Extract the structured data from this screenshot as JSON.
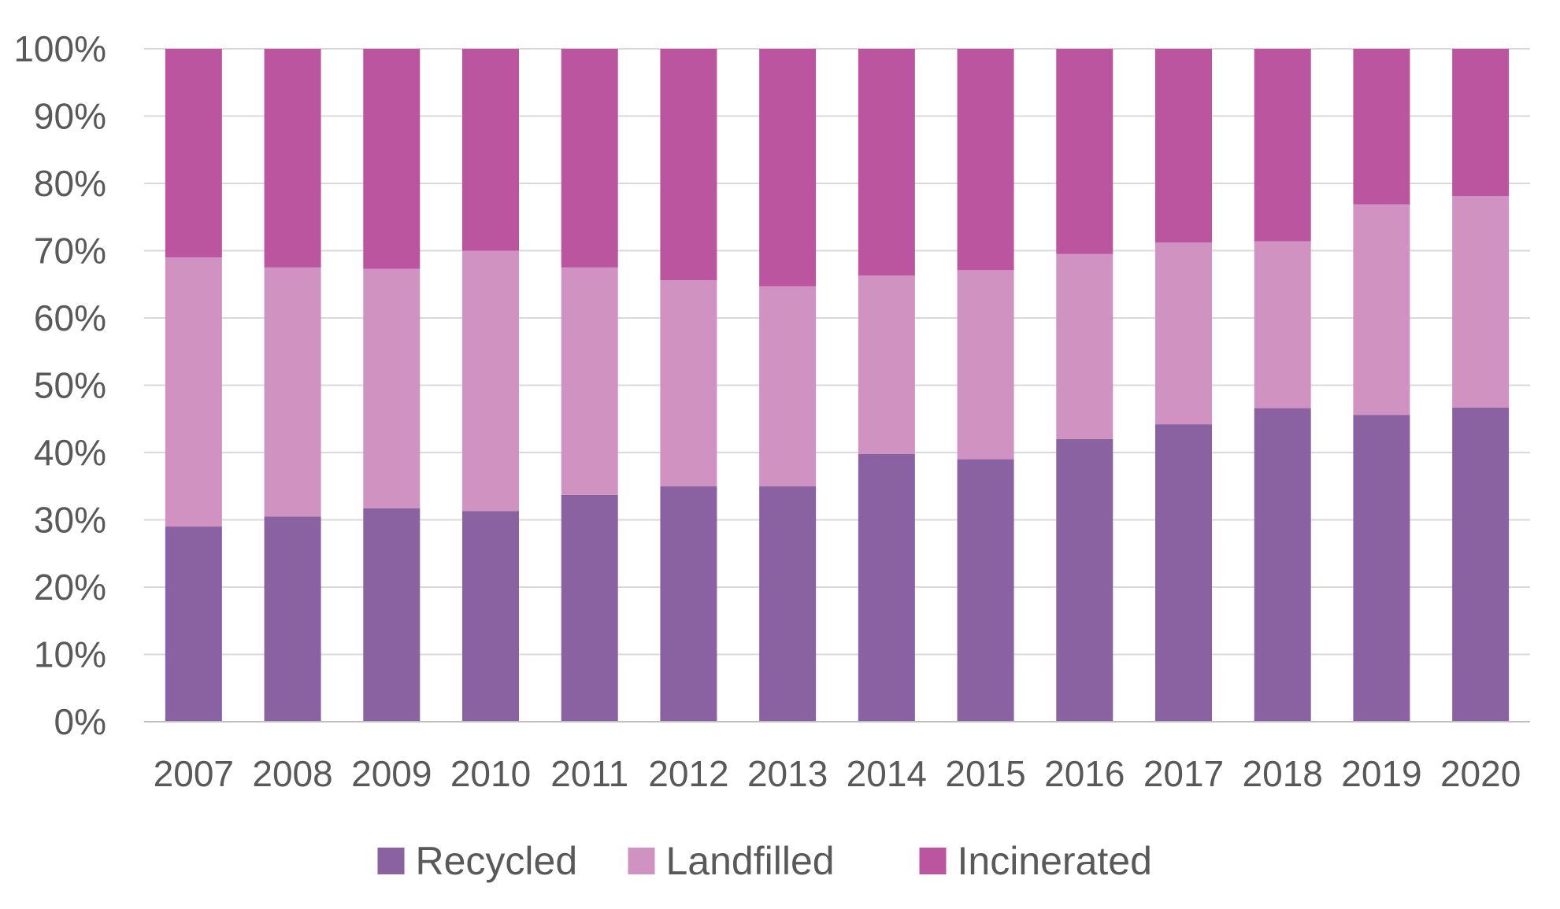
{
  "chart_data": {
    "type": "bar",
    "stacked": true,
    "percent_stacked": true,
    "categories": [
      "2007",
      "2008",
      "2009",
      "2010",
      "2011",
      "2012",
      "2013",
      "2014",
      "2015",
      "2016",
      "2017",
      "2018",
      "2019",
      "2020"
    ],
    "series": [
      {
        "name": "Recycled",
        "color": "#8B62A1",
        "values": [
          29,
          30.5,
          31.7,
          31.3,
          33.7,
          35,
          35,
          39.8,
          39,
          42,
          44.2,
          46.6,
          45.6,
          46.7
        ]
      },
      {
        "name": "Landfilled",
        "color": "#D093C1",
        "values": [
          40,
          37,
          35.6,
          38.7,
          33.8,
          30.6,
          29.7,
          26.5,
          28.1,
          27.5,
          27,
          24.8,
          31.3,
          31.4
        ]
      },
      {
        "name": "Incinerated",
        "color": "#BB559F",
        "values": [
          31,
          32.5,
          32.7,
          30,
          32.5,
          34.4,
          35.3,
          33.7,
          32.9,
          30.5,
          28.8,
          28.6,
          23.1,
          21.9
        ]
      }
    ],
    "title": "",
    "xlabel": "",
    "ylabel": "",
    "ylim": [
      0,
      100
    ],
    "y_ticks": [
      "0%",
      "10%",
      "20%",
      "30%",
      "40%",
      "50%",
      "60%",
      "70%",
      "80%",
      "90%",
      "100%"
    ],
    "y_tick_values": [
      0,
      10,
      20,
      30,
      40,
      50,
      60,
      70,
      80,
      90,
      100
    ],
    "grid": true,
    "gridline_color": "#D9D9D9",
    "axis_color": "#BFBFBF",
    "legend_position": "bottom-center"
  }
}
